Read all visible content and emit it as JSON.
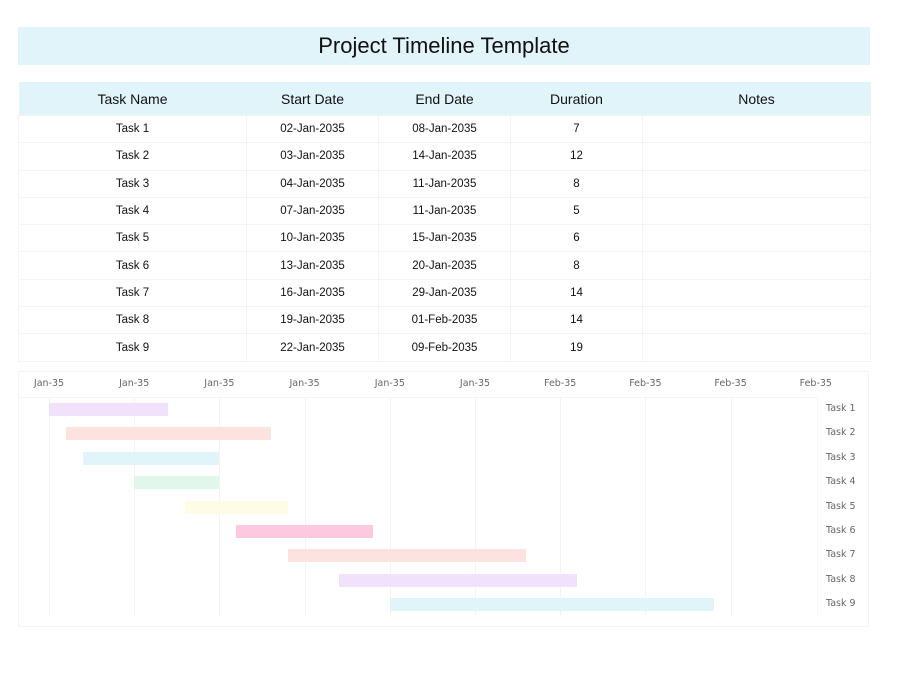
{
  "title": "Project Timeline Template",
  "table": {
    "headers": [
      "Task Name",
      "Start Date",
      "End Date",
      "Duration",
      "Notes"
    ],
    "rows": [
      {
        "task": "Task 1",
        "start": "02-Jan-2035",
        "end": "08-Jan-2035",
        "duration": "7",
        "notes": ""
      },
      {
        "task": "Task 2",
        "start": "03-Jan-2035",
        "end": "14-Jan-2035",
        "duration": "12",
        "notes": ""
      },
      {
        "task": "Task 3",
        "start": "04-Jan-2035",
        "end": "11-Jan-2035",
        "duration": "8",
        "notes": ""
      },
      {
        "task": "Task 4",
        "start": "07-Jan-2035",
        "end": "11-Jan-2035",
        "duration": "5",
        "notes": ""
      },
      {
        "task": "Task 5",
        "start": "10-Jan-2035",
        "end": "15-Jan-2035",
        "duration": "6",
        "notes": ""
      },
      {
        "task": "Task 6",
        "start": "13-Jan-2035",
        "end": "20-Jan-2035",
        "duration": "8",
        "notes": ""
      },
      {
        "task": "Task 7",
        "start": "16-Jan-2035",
        "end": "29-Jan-2035",
        "duration": "14",
        "notes": ""
      },
      {
        "task": "Task 8",
        "start": "19-Jan-2035",
        "end": "01-Feb-2035",
        "duration": "14",
        "notes": ""
      },
      {
        "task": "Task 9",
        "start": "22-Jan-2035",
        "end": "09-Feb-2035",
        "duration": "19",
        "notes": ""
      }
    ]
  },
  "colors": {
    "header_bg": "#e1f4f9",
    "bars": [
      "#f1e1fa",
      "#fde3e0",
      "#e0f4f9",
      "#e1f7e9",
      "#fefbe6",
      "#fec8df",
      "#fde3e0",
      "#f1e1fa",
      "#e0f4f9"
    ]
  },
  "chart_data": {
    "type": "bar",
    "orientation": "horizontal-gantt",
    "title": "",
    "x_tick_labels": [
      "Jan-35",
      "Jan-35",
      "Jan-35",
      "Jan-35",
      "Jan-35",
      "Jan-35",
      "Feb-35",
      "Feb-35",
      "Feb-35",
      "Feb-35"
    ],
    "x_tick_dates": [
      "02-Jan-2035",
      "07-Jan-2035",
      "12-Jan-2035",
      "17-Jan-2035",
      "22-Jan-2035",
      "27-Jan-2035",
      "01-Feb-2035",
      "06-Feb-2035",
      "11-Feb-2035",
      "16-Feb-2035"
    ],
    "categories": [
      "Task 1",
      "Task 2",
      "Task 3",
      "Task 4",
      "Task 5",
      "Task 6",
      "Task 7",
      "Task 8",
      "Task 9"
    ],
    "series": [
      {
        "name": "Start offset (days from 02-Jan-2035)",
        "values": [
          0,
          1,
          2,
          5,
          8,
          11,
          14,
          17,
          20
        ]
      },
      {
        "name": "Duration (days)",
        "values": [
          7,
          12,
          8,
          5,
          6,
          8,
          14,
          14,
          19
        ]
      }
    ],
    "xlim": [
      "02-Jan-2035",
      "18-Feb-2035"
    ],
    "grid": true,
    "legend": "none",
    "y_labels_position": "right"
  }
}
